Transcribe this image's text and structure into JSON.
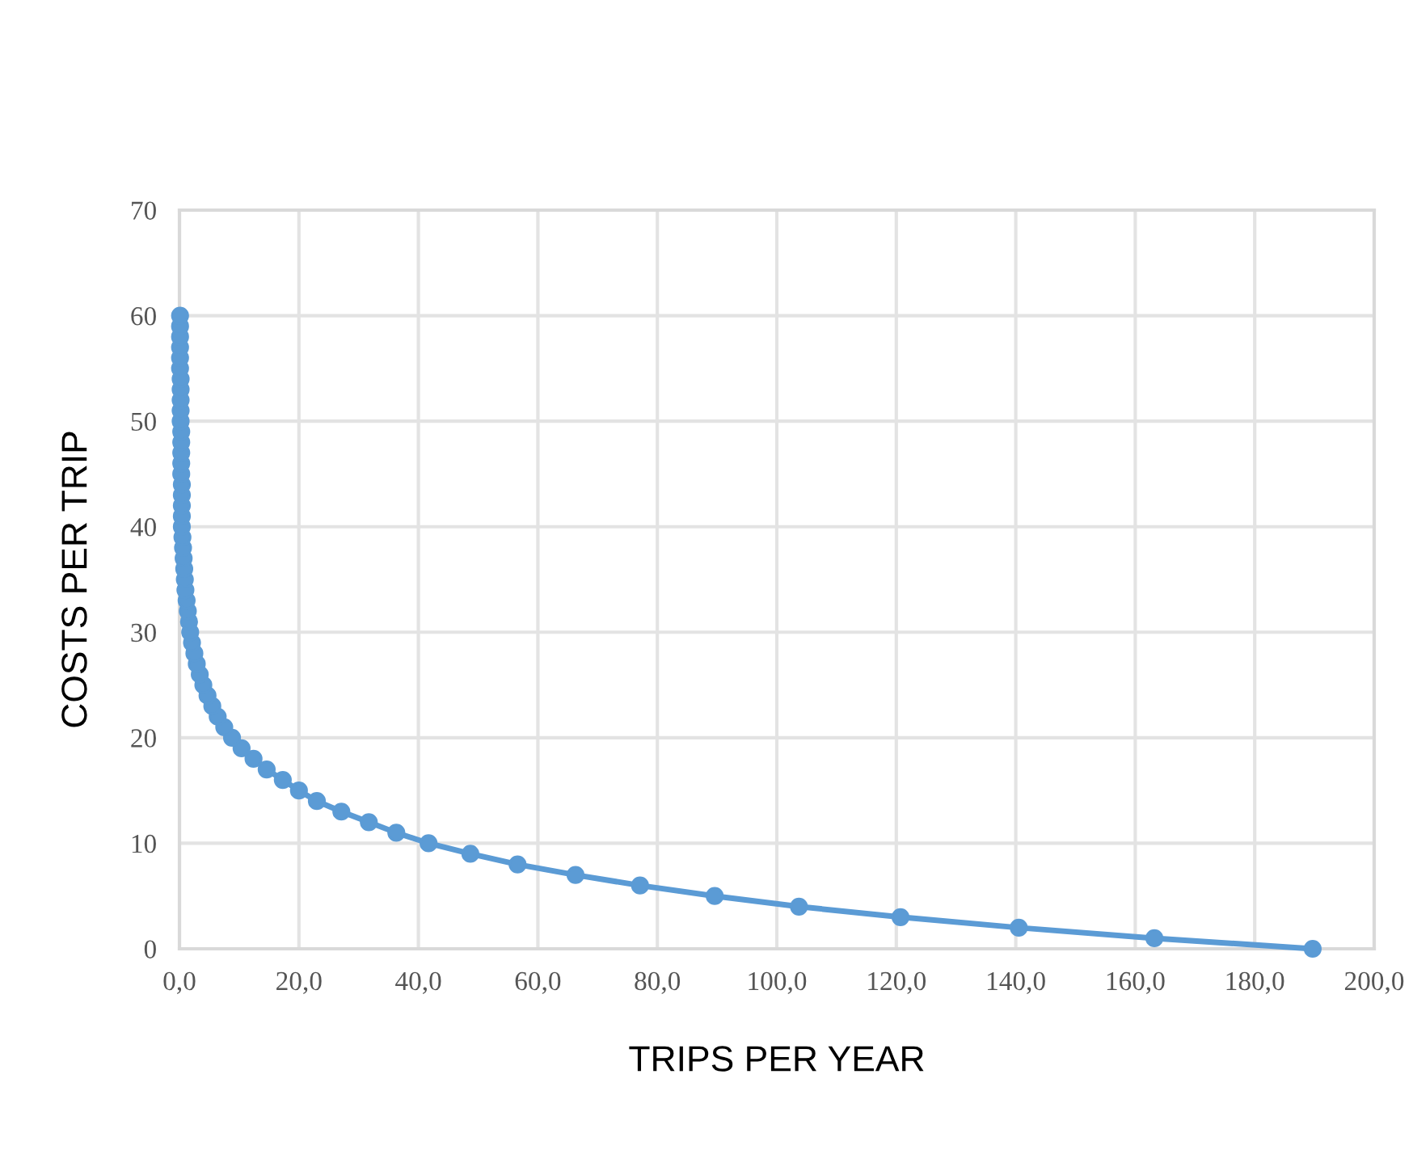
{
  "chart_data": {
    "type": "line",
    "xlabel": "TRIPS PER YEAR",
    "ylabel": "COSTS PER TRIP",
    "x": [
      189.7,
      163.2,
      140.5,
      120.7,
      103.7,
      89.6,
      77.1,
      66.3,
      56.6,
      48.7,
      41.7,
      36.3,
      31.7,
      27.1,
      23.0,
      20.0,
      17.3,
      14.6,
      12.4,
      10.4,
      8.8,
      7.5,
      6.4,
      5.5,
      4.7,
      4.0,
      3.4,
      2.9,
      2.5,
      2.1,
      1.8,
      1.6,
      1.4,
      1.2,
      1.0,
      0.9,
      0.8,
      0.7,
      0.6,
      0.5,
      0.4,
      0.4,
      0.4,
      0.4,
      0.4,
      0.3,
      0.3,
      0.3,
      0.3,
      0.3,
      0.2,
      0.2,
      0.2,
      0.2,
      0.2,
      0.1,
      0.1,
      0.1,
      0.1,
      0.1,
      0.1
    ],
    "values": [
      0,
      1,
      2,
      3,
      4,
      5,
      6,
      7,
      8,
      9,
      10,
      11,
      12,
      13,
      14,
      15,
      16,
      17,
      18,
      19,
      20,
      21,
      22,
      23,
      24,
      25,
      26,
      27,
      28,
      29,
      30,
      31,
      32,
      33,
      34,
      35,
      36,
      37,
      38,
      39,
      40,
      41,
      42,
      43,
      44,
      45,
      46,
      47,
      48,
      49,
      50,
      51,
      52,
      53,
      54,
      55,
      56,
      57,
      58,
      59,
      60
    ],
    "color": "#5b9bd5",
    "marker": "circle",
    "line_style": "solid",
    "xlim": [
      0,
      200
    ],
    "ylim": [
      0,
      70
    ],
    "xticks": [
      {
        "value": 0,
        "label": "0,0"
      },
      {
        "value": 20,
        "label": "20,0"
      },
      {
        "value": 40,
        "label": "40,0"
      },
      {
        "value": 60,
        "label": "60,0"
      },
      {
        "value": 80,
        "label": "80,0"
      },
      {
        "value": 100,
        "label": "100,0"
      },
      {
        "value": 120,
        "label": "120,0"
      },
      {
        "value": 140,
        "label": "140,0"
      },
      {
        "value": 160,
        "label": "160,0"
      },
      {
        "value": 180,
        "label": "180,0"
      },
      {
        "value": 200,
        "label": "200,0"
      }
    ],
    "yticks": [
      0,
      10,
      20,
      30,
      40,
      50,
      60,
      70
    ],
    "grid": true
  }
}
